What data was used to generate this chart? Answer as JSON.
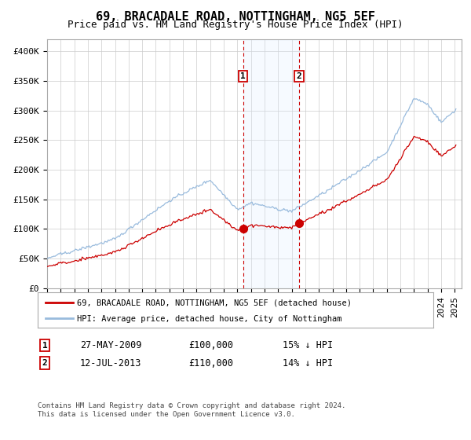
{
  "title": "69, BRACADALE ROAD, NOTTINGHAM, NG5 5EF",
  "subtitle": "Price paid vs. HM Land Registry's House Price Index (HPI)",
  "ylim": [
    0,
    420000
  ],
  "yticks": [
    0,
    50000,
    100000,
    150000,
    200000,
    250000,
    300000,
    350000,
    400000
  ],
  "ytick_labels": [
    "£0",
    "£50K",
    "£100K",
    "£150K",
    "£200K",
    "£250K",
    "£300K",
    "£350K",
    "£400K"
  ],
  "xlim_start": 1995.0,
  "xlim_end": 2025.5,
  "purchase1_x": 2009.42,
  "purchase1_y": 100000,
  "purchase1_label": "27-MAY-2009",
  "purchase1_price": "£100,000",
  "purchase1_hpi": "15% ↓ HPI",
  "purchase2_x": 2013.54,
  "purchase2_y": 110000,
  "purchase2_label": "12-JUL-2013",
  "purchase2_price": "£110,000",
  "purchase2_hpi": "14% ↓ HPI",
  "line_color_property": "#cc0000",
  "line_color_hpi": "#99bbdd",
  "shaded_color": "#ddeeff",
  "dashed_line_color": "#cc0000",
  "legend_label1": "69, BRACADALE ROAD, NOTTINGHAM, NG5 5EF (detached house)",
  "legend_label2": "HPI: Average price, detached house, City of Nottingham",
  "footer": "Contains HM Land Registry data © Crown copyright and database right 2024.\nThis data is licensed under the Open Government Licence v3.0.",
  "background_color": "#ffffff",
  "grid_color": "#cccccc",
  "title_fontsize": 11,
  "subtitle_fontsize": 9,
  "tick_fontsize": 8
}
